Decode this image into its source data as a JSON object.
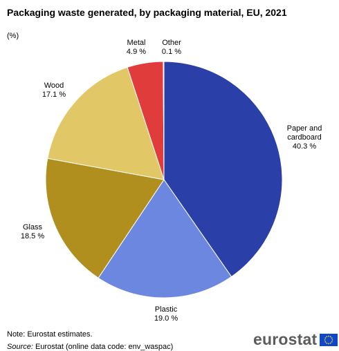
{
  "chart_data": {
    "type": "pie",
    "title": "Packaging waste generated, by packaging material, EU, 2021",
    "unit": "(%)",
    "slices": [
      {
        "label_lines": [
          "Paper and",
          "cardboard"
        ],
        "value": 40.3,
        "value_label": "40.3 %",
        "color": "#2a3fa7"
      },
      {
        "label_lines": [
          "Plastic"
        ],
        "value": 19.0,
        "value_label": "19.0 %",
        "color": "#6c87e0"
      },
      {
        "label_lines": [
          "Glass"
        ],
        "value": 18.5,
        "value_label": "18.5 %",
        "color": "#b08f1e"
      },
      {
        "label_lines": [
          "Wood"
        ],
        "value": 17.1,
        "value_label": "17.1 %",
        "color": "#e2c766"
      },
      {
        "label_lines": [
          "Metal"
        ],
        "value": 4.9,
        "value_label": "4.9 %",
        "color": "#e13c3c"
      },
      {
        "label_lines": [
          "Other"
        ],
        "value": 0.1,
        "value_label": "0.1 %",
        "color": "#f0a040"
      }
    ]
  },
  "footer": {
    "note": "Note: Eurostat estimates.",
    "source_label": "Source:",
    "source_text": " Eurostat (online data code: env_waspac)"
  },
  "logo": {
    "text": "eurostat",
    "flag_icon": "eu-flag-icon"
  }
}
